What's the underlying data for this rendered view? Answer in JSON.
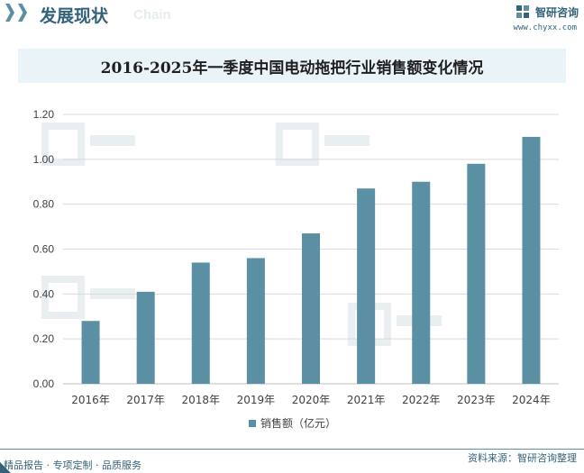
{
  "header": {
    "title": "发展现状",
    "subtitle": "Chain"
  },
  "brand": {
    "name": "智研咨询",
    "url": "www.chyxx.com"
  },
  "colors": {
    "accent": "#33627a",
    "bar": "#5b8fa3",
    "title_band": "#eaf3f8",
    "grid": "#d9d9d9"
  },
  "chart_data": {
    "type": "bar",
    "title": "2016-2025年一季度中国电动拖把行业销售额变化情况",
    "categories": [
      "2016年",
      "2017年",
      "2018年",
      "2019年",
      "2020年",
      "2021年",
      "2022年",
      "2023年",
      "2024年"
    ],
    "series": [
      {
        "name": "销售额（亿元）",
        "values": [
          0.28,
          0.41,
          0.54,
          0.56,
          0.67,
          0.87,
          0.9,
          0.98,
          1.1
        ]
      }
    ],
    "ylim": [
      0,
      1.2
    ],
    "yticks": [
      "0.00",
      "0.20",
      "0.40",
      "0.60",
      "0.80",
      "1.00",
      "1.20"
    ],
    "ytick_values": [
      0,
      0.2,
      0.4,
      0.6,
      0.8,
      1.0,
      1.2
    ],
    "legend": "bottom-center",
    "grid": true
  },
  "footer": {
    "left": "精品报告 · 专项定制 · 品质服务",
    "right": "资料来源：智研咨询整理"
  }
}
